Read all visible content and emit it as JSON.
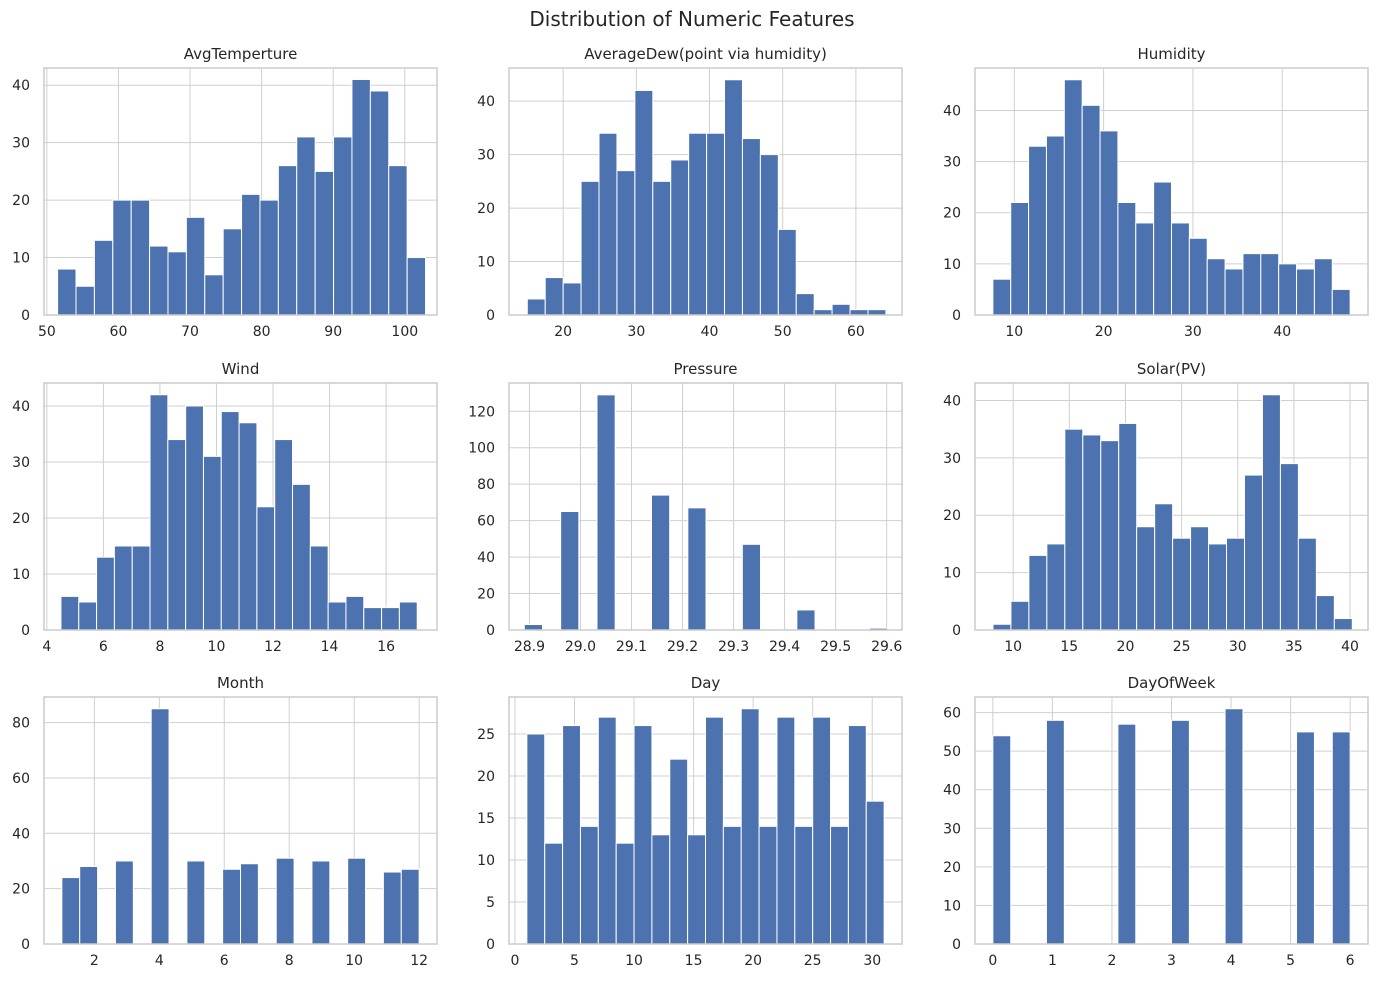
{
  "figure_title": "Distribution of Numeric Features",
  "colors": {
    "bar": "#4c72b0",
    "bar_edge": "#ffffff",
    "grid": "#cfcfcf",
    "frame": "#cccccc",
    "background": "#ffffff"
  },
  "chart_data": [
    {
      "type": "bar",
      "title": "AvgTemperture",
      "xlim": [
        49.6,
        104.5
      ],
      "ylim": [
        0,
        43
      ],
      "bins": {
        "start": 51.5,
        "width": 2.57
      },
      "values": [
        8,
        5,
        13,
        20,
        20,
        12,
        11,
        17,
        7,
        15,
        21,
        20,
        26,
        31,
        25,
        31,
        41,
        39,
        26,
        10
      ],
      "xticks": [
        50,
        60,
        70,
        80,
        90,
        100
      ],
      "xtick_labels": [
        "50",
        "60",
        "70",
        "80",
        "90",
        "100"
      ],
      "yticks": [
        0,
        10,
        20,
        30,
        40
      ],
      "ytick_labels": [
        "0",
        "10",
        "20",
        "30",
        "40"
      ],
      "grid": true
    },
    {
      "type": "bar",
      "title": "AverageDew(point via humidity)",
      "xlim": [
        12.6,
        66.3
      ],
      "ylim": [
        0,
        46.2
      ],
      "bins": {
        "start": 15.1,
        "width": 2.45
      },
      "values": [
        3,
        7,
        6,
        25,
        34,
        27,
        42,
        25,
        29,
        34,
        34,
        44,
        33,
        30,
        16,
        4,
        1,
        2,
        1,
        1
      ],
      "xticks": [
        20,
        30,
        40,
        50,
        60
      ],
      "xtick_labels": [
        "20",
        "30",
        "40",
        "50",
        "60"
      ],
      "yticks": [
        0,
        10,
        20,
        30,
        40
      ],
      "ytick_labels": [
        "0",
        "10",
        "20",
        "30",
        "40"
      ],
      "grid": true
    },
    {
      "type": "bar",
      "title": "Humidity",
      "xlim": [
        5.6,
        49.6
      ],
      "ylim": [
        0,
        48.3
      ],
      "bins": {
        "start": 7.6,
        "width": 2.0
      },
      "values": [
        7,
        22,
        33,
        35,
        46,
        41,
        36,
        22,
        18,
        26,
        18,
        15,
        11,
        9,
        12,
        12,
        10,
        9,
        11,
        5
      ],
      "xticks": [
        10,
        20,
        30,
        40
      ],
      "xtick_labels": [
        "10",
        "20",
        "30",
        "40"
      ],
      "yticks": [
        0,
        10,
        20,
        30,
        40
      ],
      "ytick_labels": [
        "0",
        "10",
        "20",
        "30",
        "40"
      ],
      "grid": true
    },
    {
      "type": "bar",
      "title": "Wind",
      "xlim": [
        3.9,
        17.8
      ],
      "ylim": [
        0,
        44.1
      ],
      "bins": {
        "start": 4.5,
        "width": 0.63
      },
      "values": [
        6,
        5,
        13,
        15,
        15,
        42,
        34,
        40,
        31,
        39,
        37,
        22,
        34,
        26,
        15,
        5,
        6,
        4,
        4,
        5
      ],
      "xticks": [
        4,
        6,
        8,
        10,
        12,
        14,
        16
      ],
      "xtick_labels": [
        "4",
        "6",
        "8",
        "10",
        "12",
        "14",
        "16"
      ],
      "yticks": [
        0,
        10,
        20,
        30,
        40
      ],
      "ytick_labels": [
        "0",
        "10",
        "20",
        "30",
        "40"
      ],
      "grid": true
    },
    {
      "type": "bar",
      "title": "Pressure",
      "xlim": [
        28.86,
        29.63
      ],
      "ylim": [
        0,
        135.5
      ],
      "bins": {
        "start": 28.89,
        "width": 0.0356
      },
      "values": [
        3,
        0,
        65,
        0,
        129,
        0,
        0,
        74,
        0,
        67,
        0,
        0,
        47,
        0,
        0,
        11,
        0,
        0,
        0,
        1
      ],
      "xticks": [
        28.9,
        29.0,
        29.1,
        29.2,
        29.3,
        29.4,
        29.5,
        29.6
      ],
      "xtick_labels": [
        "28.9",
        "29.0",
        "29.1",
        "29.2",
        "29.3",
        "29.4",
        "29.5",
        "29.6"
      ],
      "yticks": [
        0,
        20,
        40,
        60,
        80,
        100,
        120
      ],
      "ytick_labels": [
        "0",
        "20",
        "40",
        "60",
        "80",
        "100",
        "120"
      ],
      "grid": true
    },
    {
      "type": "bar",
      "title": "Solar(PV)",
      "xlim": [
        6.6,
        41.6
      ],
      "ylim": [
        0,
        43.05
      ],
      "bins": {
        "start": 8.2,
        "width": 1.6
      },
      "values": [
        1,
        5,
        13,
        15,
        35,
        34,
        33,
        36,
        18,
        22,
        16,
        18,
        15,
        16,
        27,
        41,
        29,
        16,
        6,
        2
      ],
      "xticks": [
        10,
        15,
        20,
        25,
        30,
        35,
        40
      ],
      "xtick_labels": [
        "10",
        "15",
        "20",
        "25",
        "30",
        "35",
        "40"
      ],
      "yticks": [
        0,
        10,
        20,
        30,
        40
      ],
      "ytick_labels": [
        "0",
        "10",
        "20",
        "30",
        "40"
      ],
      "grid": true
    },
    {
      "type": "bar",
      "title": "Month",
      "xlim": [
        0.45,
        12.55
      ],
      "ylim": [
        0,
        89.25
      ],
      "bins": {
        "start": 1.0,
        "width": 0.55
      },
      "values": [
        24,
        28,
        0,
        30,
        0,
        85,
        0,
        30,
        0,
        27,
        29,
        0,
        31,
        0,
        30,
        0,
        31,
        0,
        26,
        27
      ],
      "xticks": [
        2,
        4,
        6,
        8,
        10,
        12
      ],
      "xtick_labels": [
        "2",
        "4",
        "6",
        "8",
        "10",
        "12"
      ],
      "yticks": [
        0,
        20,
        40,
        60,
        80
      ],
      "ytick_labels": [
        "0",
        "20",
        "40",
        "60",
        "80"
      ],
      "grid": true
    },
    {
      "type": "bar",
      "title": "Day",
      "xlim": [
        -0.5,
        32.5
      ],
      "ylim": [
        0,
        29.4
      ],
      "bins": {
        "start": 1.0,
        "width": 1.5
      },
      "values": [
        25,
        12,
        26,
        14,
        27,
        12,
        26,
        13,
        22,
        13,
        27,
        14,
        28,
        14,
        27,
        14,
        27,
        14,
        26,
        17
      ],
      "xticks": [
        0,
        5,
        10,
        15,
        20,
        25,
        30
      ],
      "xtick_labels": [
        "0",
        "5",
        "10",
        "15",
        "20",
        "25",
        "30"
      ],
      "yticks": [
        0,
        5,
        10,
        15,
        20,
        25
      ],
      "ytick_labels": [
        "0",
        "5",
        "10",
        "15",
        "20",
        "25"
      ],
      "grid": true
    },
    {
      "type": "bar",
      "title": "DayOfWeek",
      "xlim": [
        -0.3,
        6.3
      ],
      "ylim": [
        0,
        64.05
      ],
      "bins": {
        "start": 0.0,
        "width": 0.3
      },
      "values": [
        54,
        0,
        0,
        58,
        0,
        0,
        0,
        57,
        0,
        0,
        58,
        0,
        0,
        61,
        0,
        0,
        0,
        55,
        0,
        55
      ],
      "xticks": [
        0,
        1,
        2,
        3,
        4,
        5,
        6
      ],
      "xtick_labels": [
        "0",
        "1",
        "2",
        "3",
        "4",
        "5",
        "6"
      ],
      "yticks": [
        0,
        10,
        20,
        30,
        40,
        50,
        60
      ],
      "ytick_labels": [
        "0",
        "10",
        "20",
        "30",
        "40",
        "50",
        "60"
      ],
      "grid": true
    }
  ]
}
